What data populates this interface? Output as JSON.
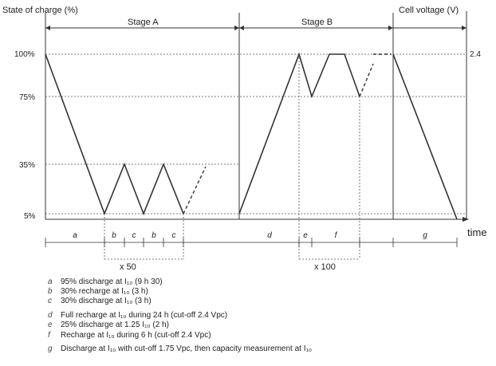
{
  "title_left": "State of charge (%)",
  "title_right": "Cell voltage (V)",
  "stage_a_label": "Stage A",
  "stage_b_label": "Stage B",
  "time_label": "time",
  "y_ticks": [
    "100%",
    "75%",
    "35%",
    "5%"
  ],
  "voltage_tick": "2.4",
  "repeat_a": "x 50",
  "repeat_b": "x 100",
  "segment_labels": {
    "a": "a",
    "b": "b",
    "c": "c",
    "d": "d",
    "e": "e",
    "f": "f",
    "g": "g"
  },
  "legend": [
    {
      "letter": "a",
      "text": "95% discharge at I₁₀ (9 h 30)"
    },
    {
      "letter": "b",
      "text": "30% recharge at I₁₀ (3 h)"
    },
    {
      "letter": "c",
      "text": "30% discharge at I₁₀ (3 h)"
    },
    {
      "letter": "d",
      "text": "Full recharge at I₁₀ during 24 h (cut-off 2.4 Vpc)"
    },
    {
      "letter": "e",
      "text": "25% discharge at 1.25 I₁₀ (2 h)"
    },
    {
      "letter": "f",
      "text": "Recharge at I₁₀ during 6 h (cut-off 2.4 Vpc)"
    },
    {
      "letter": "g",
      "text": "Discharge at I₁₀ with cut-off 1.75 Vpc, then capacity measurement at I₁₀"
    }
  ]
}
